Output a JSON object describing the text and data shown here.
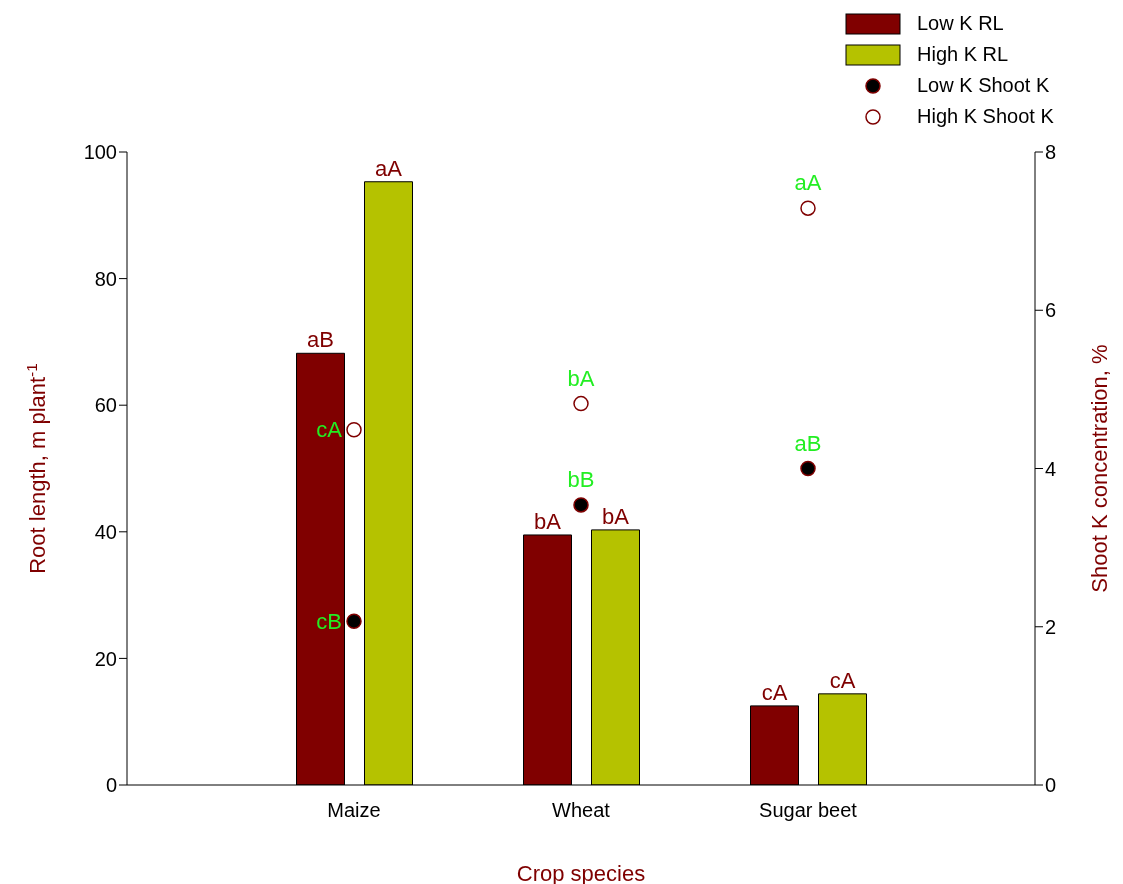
{
  "chart_data": {
    "type": "bar",
    "xlabel": "Crop species",
    "ylabel": "Root length, m plant$^{-1}$",
    "y2label": "Shoot K concentration, %",
    "categories": [
      "Maize",
      "Wheat",
      "Sugar beet"
    ],
    "series": [
      {
        "name": "Low K RL",
        "color": "#800000",
        "values": [
          68.2,
          39.5,
          12.5
        ],
        "value_labels": [
          "aB",
          "bA",
          "cA"
        ]
      },
      {
        "name": "High K RL",
        "color": "#b5c200",
        "values": [
          95.3,
          40.3,
          14.4
        ],
        "value_labels": [
          "aA",
          "bA",
          "cA"
        ]
      },
      {
        "name": "Low K Shoot K",
        "type": "scatter",
        "axis": "y2",
        "color": "#000000",
        "values": [
          2.07,
          3.54,
          4.0
        ],
        "value_labels": [
          "cB",
          "bB",
          "aB"
        ]
      },
      {
        "name": "High K Shoot K",
        "type": "scatter",
        "axis": "y2",
        "color": "#ffffff",
        "values": [
          4.49,
          4.82,
          7.29
        ],
        "value_labels": [
          "cA",
          "bA",
          "aA"
        ]
      }
    ],
    "ylim": [
      0,
      100
    ],
    "yticks": [
      0,
      20,
      40,
      60,
      80,
      100
    ],
    "y2lim": [
      0,
      8
    ],
    "y2ticks": [
      0,
      2,
      4,
      6,
      8
    ],
    "marker": "circle",
    "legend": "top right"
  }
}
